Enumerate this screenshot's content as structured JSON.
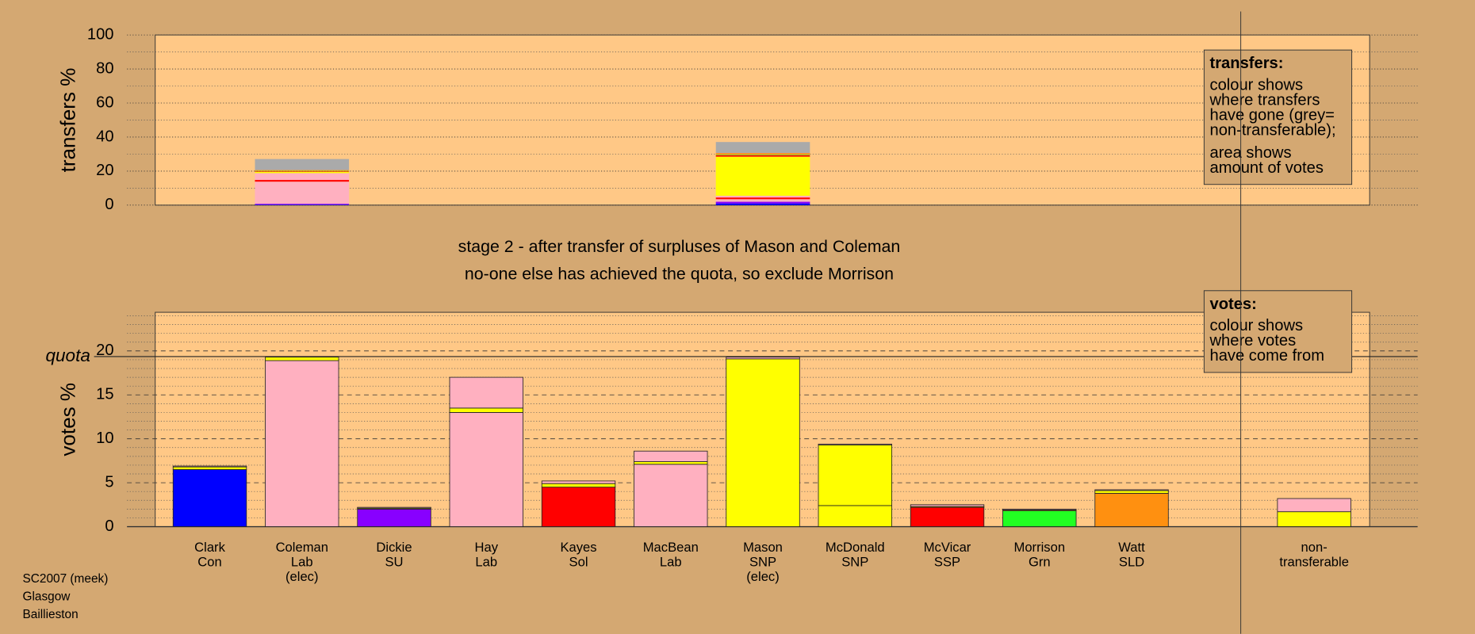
{
  "chart_data": [
    {
      "type": "bar",
      "stacked": true,
      "y_label": "transfers %",
      "ylim": [
        0,
        100
      ],
      "yticks": [
        0,
        20,
        40,
        60,
        80,
        100
      ],
      "minor_yticks": [
        10,
        30,
        50,
        70,
        90
      ],
      "grid": true,
      "note": {
        "heading": "transfers:",
        "paragraphs": [
          [
            "colour shows",
            "where transfers",
            "have gone (grey=",
            "non-transferable);"
          ],
          [
            "area shows",
            "amount of votes"
          ]
        ]
      },
      "series": [
        {
          "color": "#0000ff",
          "values": [
            null,
            0.3,
            null,
            null,
            null,
            null,
            1,
            null,
            null,
            null,
            null,
            null
          ]
        },
        {
          "color": "#8800ff",
          "values": [
            null,
            0.5,
            null,
            null,
            null,
            null,
            1,
            null,
            null,
            null,
            null,
            null
          ]
        },
        {
          "color": "#ffb0c0",
          "values": [
            null,
            13,
            null,
            null,
            null,
            null,
            1.5,
            null,
            null,
            null,
            null,
            null
          ]
        },
        {
          "color": "#ff0000",
          "values": [
            null,
            1,
            null,
            null,
            null,
            null,
            1,
            null,
            null,
            null,
            null,
            null
          ]
        },
        {
          "color": "#ffb0c0",
          "values": [
            null,
            4,
            null,
            null,
            null,
            null,
            1,
            null,
            null,
            null,
            null,
            null
          ]
        },
        {
          "color": "#ffff00",
          "values": [
            null,
            0.8,
            null,
            null,
            null,
            null,
            23,
            null,
            null,
            null,
            null,
            null
          ]
        },
        {
          "color": "#ff0000",
          "values": [
            null,
            0.3,
            null,
            null,
            null,
            null,
            0.8,
            null,
            null,
            null,
            null,
            null
          ]
        },
        {
          "color": "#22ff22",
          "values": [
            null,
            0.2,
            null,
            null,
            null,
            null,
            0.3,
            null,
            null,
            null,
            null,
            null
          ]
        },
        {
          "color": "#ff9010",
          "values": [
            null,
            0.5,
            null,
            null,
            null,
            null,
            1,
            null,
            null,
            null,
            null,
            null
          ]
        },
        {
          "color": "#aaaaaa",
          "values": [
            null,
            6.5,
            null,
            null,
            null,
            null,
            6.5,
            null,
            null,
            null,
            null,
            null
          ]
        }
      ]
    },
    {
      "type": "bar",
      "stacked": true,
      "y_label": "votes %",
      "titles": [
        "stage 2 - after transfer of surpluses of Mason and Coleman",
        "no-one else has achieved the quota, so exclude Morrison"
      ],
      "ylim": [
        0,
        24.4
      ],
      "yticks": [
        0,
        5,
        10,
        15,
        20
      ],
      "minor_yticks": [
        1,
        2,
        3,
        4,
        6,
        7,
        8,
        9,
        11,
        12,
        13,
        14,
        16,
        17,
        18,
        19,
        21,
        22,
        23,
        24
      ],
      "grid": true,
      "quota": {
        "label": "quota",
        "value": 19.36
      },
      "note": {
        "heading": "votes:",
        "paragraphs": [
          [
            "colour shows",
            "where votes",
            "have come from"
          ]
        ]
      },
      "categories": [
        [
          "Clark",
          "Con"
        ],
        [
          "Coleman",
          "Lab",
          "(elec)"
        ],
        [
          "Dickie",
          "SU"
        ],
        [
          "Hay",
          "Lab"
        ],
        [
          "Kayes",
          "Sol"
        ],
        [
          "MacBean",
          "Lab"
        ],
        [
          "Mason",
          "SNP",
          "(elec)"
        ],
        [
          "McDonald",
          "SNP"
        ],
        [
          "McVicar",
          "SSP"
        ],
        [
          "Morrison",
          "Grn"
        ],
        [
          "Watt",
          "SLD"
        ],
        [
          "non-",
          "transferable"
        ]
      ],
      "series": [
        {
          "colors": [
            "#0000ff",
            "#ffb0c0",
            "#8800ff",
            "#ffb0c0",
            "#ff0000",
            "#ffb0c0",
            "#ffff00",
            "#ffff00",
            "#ff0000",
            "#22ff22",
            "#ff9010",
            null
          ],
          "values": [
            6.5,
            18.9,
            2.0,
            13.0,
            4.5,
            7.1,
            19.1,
            2.4,
            2.2,
            1.8,
            3.8,
            null
          ]
        },
        {
          "color": "#ffff00",
          "values": [
            0.3,
            0.4,
            0.1,
            0.5,
            0.4,
            0.3,
            null,
            6.9,
            0.1,
            0.1,
            0.3,
            1.7
          ]
        },
        {
          "color": "#ffb0c0",
          "values": [
            0.1,
            null,
            0.1,
            3.5,
            0.3,
            1.2,
            0.2,
            0.1,
            0.2,
            0.1,
            0.1,
            1.5
          ]
        }
      ]
    }
  ],
  "footer": [
    "SC2007 (meek)",
    "Glasgow",
    "Baillieston"
  ]
}
